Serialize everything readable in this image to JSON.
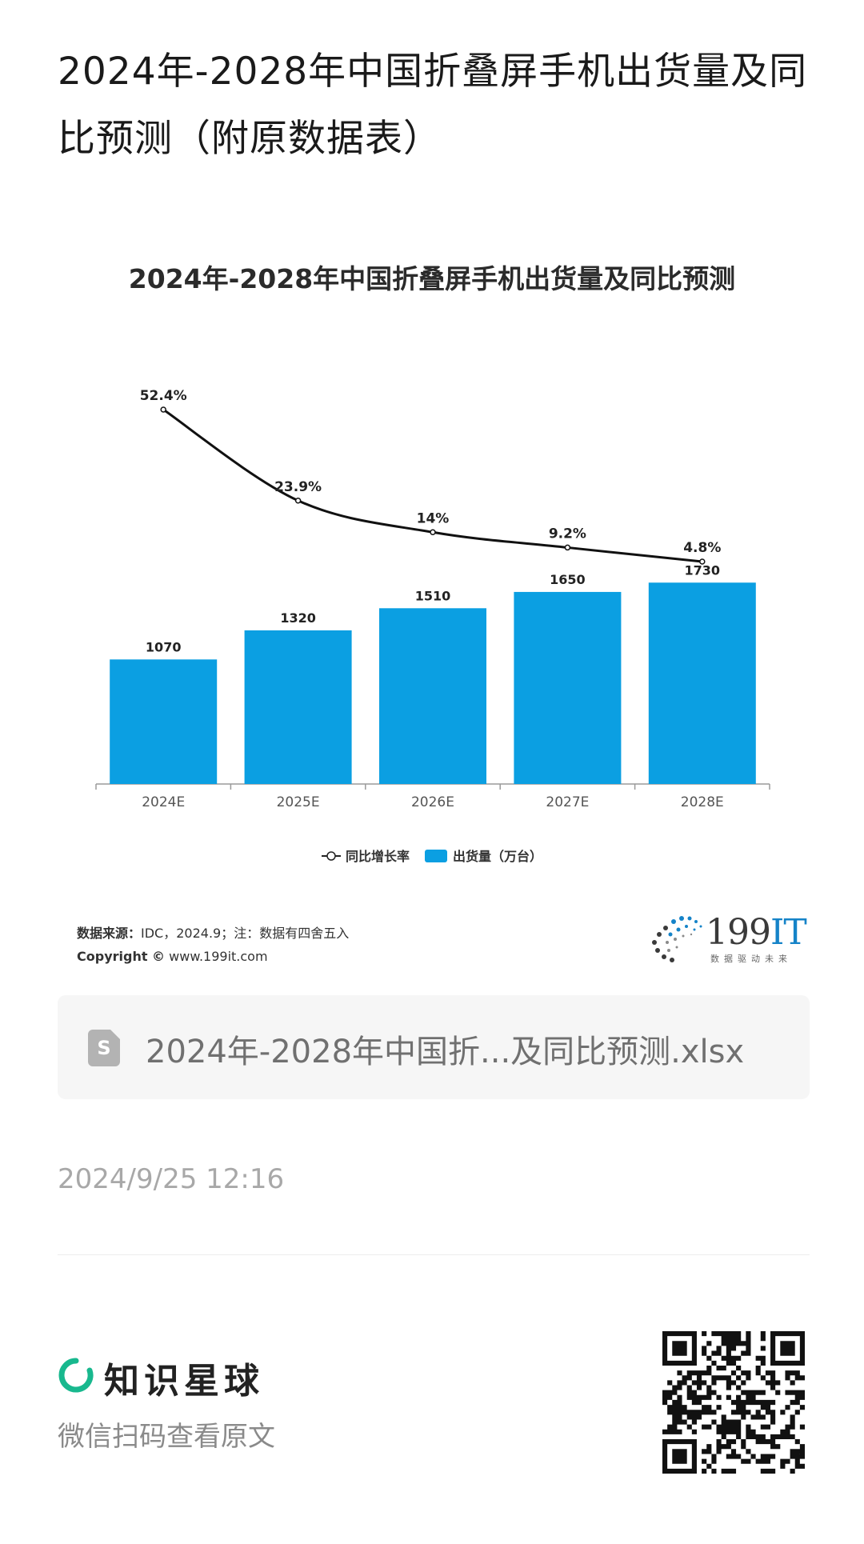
{
  "page": {
    "title": "2024年-2028年中国折叠屏手机出货量及同比预测（附原数据表）"
  },
  "chart_data": {
    "type": "bar",
    "title": "2024年-2028年中国折叠屏手机出货量及同比预测",
    "categories": [
      "2024E",
      "2025E",
      "2026E",
      "2027E",
      "2028E"
    ],
    "series": [
      {
        "name": "出货量（万台）",
        "type": "bar",
        "values": [
          1070,
          1320,
          1510,
          1650,
          1730
        ],
        "labels": [
          "1070",
          "1320",
          "1510",
          "1650",
          "1730"
        ],
        "color": "#0b9fe2"
      },
      {
        "name": "同比增长率",
        "type": "line",
        "values": [
          52.4,
          23.9,
          14,
          9.2,
          4.8
        ],
        "labels": [
          "52.4%",
          "23.9%",
          "14%",
          "9.2%",
          "4.8%"
        ],
        "color": "#111111"
      }
    ],
    "legend": [
      "同比增长率",
      "出货量（万台）"
    ],
    "legend_position": "bottom",
    "grid": false
  },
  "source": {
    "label": "数据来源：",
    "text": "IDC，2024.9；注：数据有四舍五入",
    "copyright_label": "Copyright ©",
    "url": "www.199it.com"
  },
  "brand": {
    "name_digits": "199",
    "name_letters": "IT",
    "tagline": "数据驱动未来",
    "color": "#1583c8"
  },
  "file": {
    "icon": "spreadsheet-file-icon",
    "icon_letter": "S",
    "name": "2024年-2028年中国折...及同比预测.xlsx"
  },
  "post": {
    "timestamp": "2024/9/25 12:16"
  },
  "footer": {
    "app_name": "知识星球",
    "app_color": "#18b88e",
    "hint": "微信扫码查看原文",
    "qr_icon": "qr-code-icon"
  }
}
